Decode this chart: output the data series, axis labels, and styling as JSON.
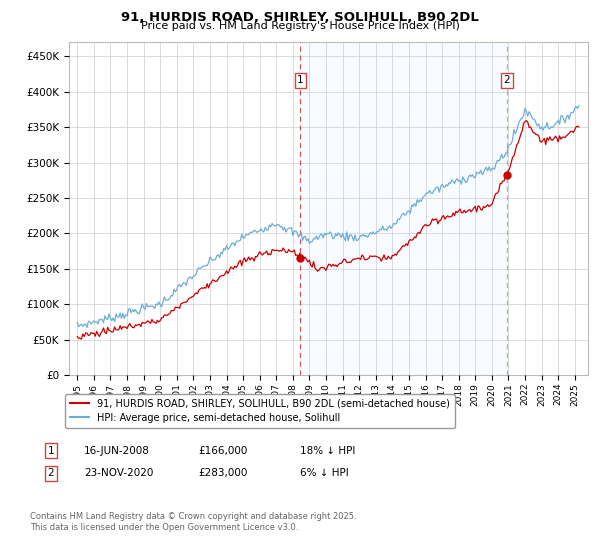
{
  "title": "91, HURDIS ROAD, SHIRLEY, SOLIHULL, B90 2DL",
  "subtitle": "Price paid vs. HM Land Registry's House Price Index (HPI)",
  "legend_line1": "91, HURDIS ROAD, SHIRLEY, SOLIHULL, B90 2DL (semi-detached house)",
  "legend_line2": "HPI: Average price, semi-detached house, Solihull",
  "annotation1_date": "16-JUN-2008",
  "annotation1_price": "£166,000",
  "annotation1_hpi": "18% ↓ HPI",
  "annotation2_date": "23-NOV-2020",
  "annotation2_price": "£283,000",
  "annotation2_hpi": "6% ↓ HPI",
  "footer": "Contains HM Land Registry data © Crown copyright and database right 2025.\nThis data is licensed under the Open Government Licence v3.0.",
  "sale1_year": 2008.46,
  "sale1_price": 166000,
  "sale2_year": 2020.9,
  "sale2_price": 283000,
  "red_color": "#cc0000",
  "blue_color": "#6baed6",
  "shade_color": "#ddeeff",
  "ylim_min": 0,
  "ylim_max": 470000,
  "xlim_min": 1994.5,
  "xlim_max": 2025.8,
  "background_color": "#ffffff",
  "grid_color": "#cccccc"
}
